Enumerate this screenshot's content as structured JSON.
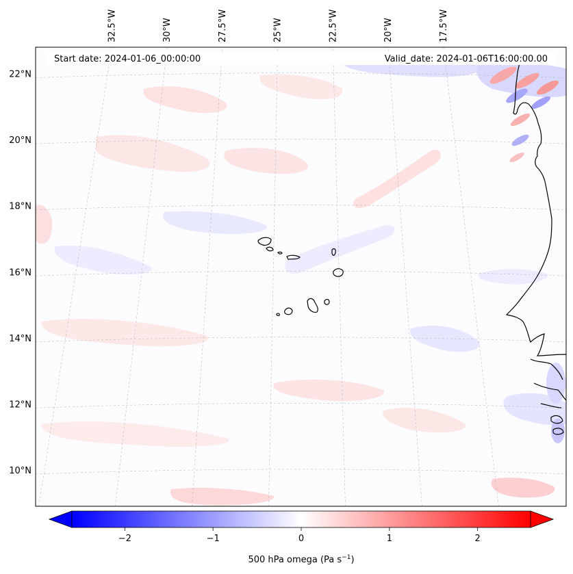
{
  "header": {
    "start_date": "Start date: 2024-01-06_00:00:00",
    "valid_date": "Valid_date: 2024-01-06T16:00:00.00"
  },
  "map": {
    "lon_range": [
      -32.6,
      -15.3
    ],
    "lat_range": [
      8.9,
      22.8
    ],
    "lon_ticks": [
      {
        "value": -32.5,
        "label": "32.5°W"
      },
      {
        "value": -30.0,
        "label": "30°W"
      },
      {
        "value": -27.5,
        "label": "27.5°W"
      },
      {
        "value": -25.0,
        "label": "25°W"
      },
      {
        "value": -22.5,
        "label": "22.5°W"
      },
      {
        "value": -20.0,
        "label": "20°W"
      },
      {
        "value": -17.5,
        "label": "17.5°W"
      }
    ],
    "lat_ticks": [
      {
        "value": 10,
        "label": "10°N"
      },
      {
        "value": 12,
        "label": "12°N"
      },
      {
        "value": 14,
        "label": "14°N"
      },
      {
        "value": 16,
        "label": "16°N"
      },
      {
        "value": 18,
        "label": "18°N"
      },
      {
        "value": 20,
        "label": "20°N"
      },
      {
        "value": 22,
        "label": "22°N"
      }
    ],
    "gridlines": true,
    "field": "500 hPa omega"
  },
  "colorbar": {
    "min": -2.6,
    "max": 2.6,
    "colormap": "bwr",
    "extend": "both",
    "ticks": [
      {
        "value": -2,
        "label": "−2"
      },
      {
        "value": -1,
        "label": "−1"
      },
      {
        "value": 0,
        "label": "0"
      },
      {
        "value": 1,
        "label": "1"
      },
      {
        "value": 2,
        "label": "2"
      }
    ],
    "label_main": "500 hPa omega (Pa s",
    "label_sup": "−1",
    "label_end": ")"
  },
  "colors": {
    "negative": "#0000ff",
    "neutral": "#ffffff",
    "positive": "#ff0000",
    "coast": "#000000",
    "grid": "#b0b0b0"
  }
}
